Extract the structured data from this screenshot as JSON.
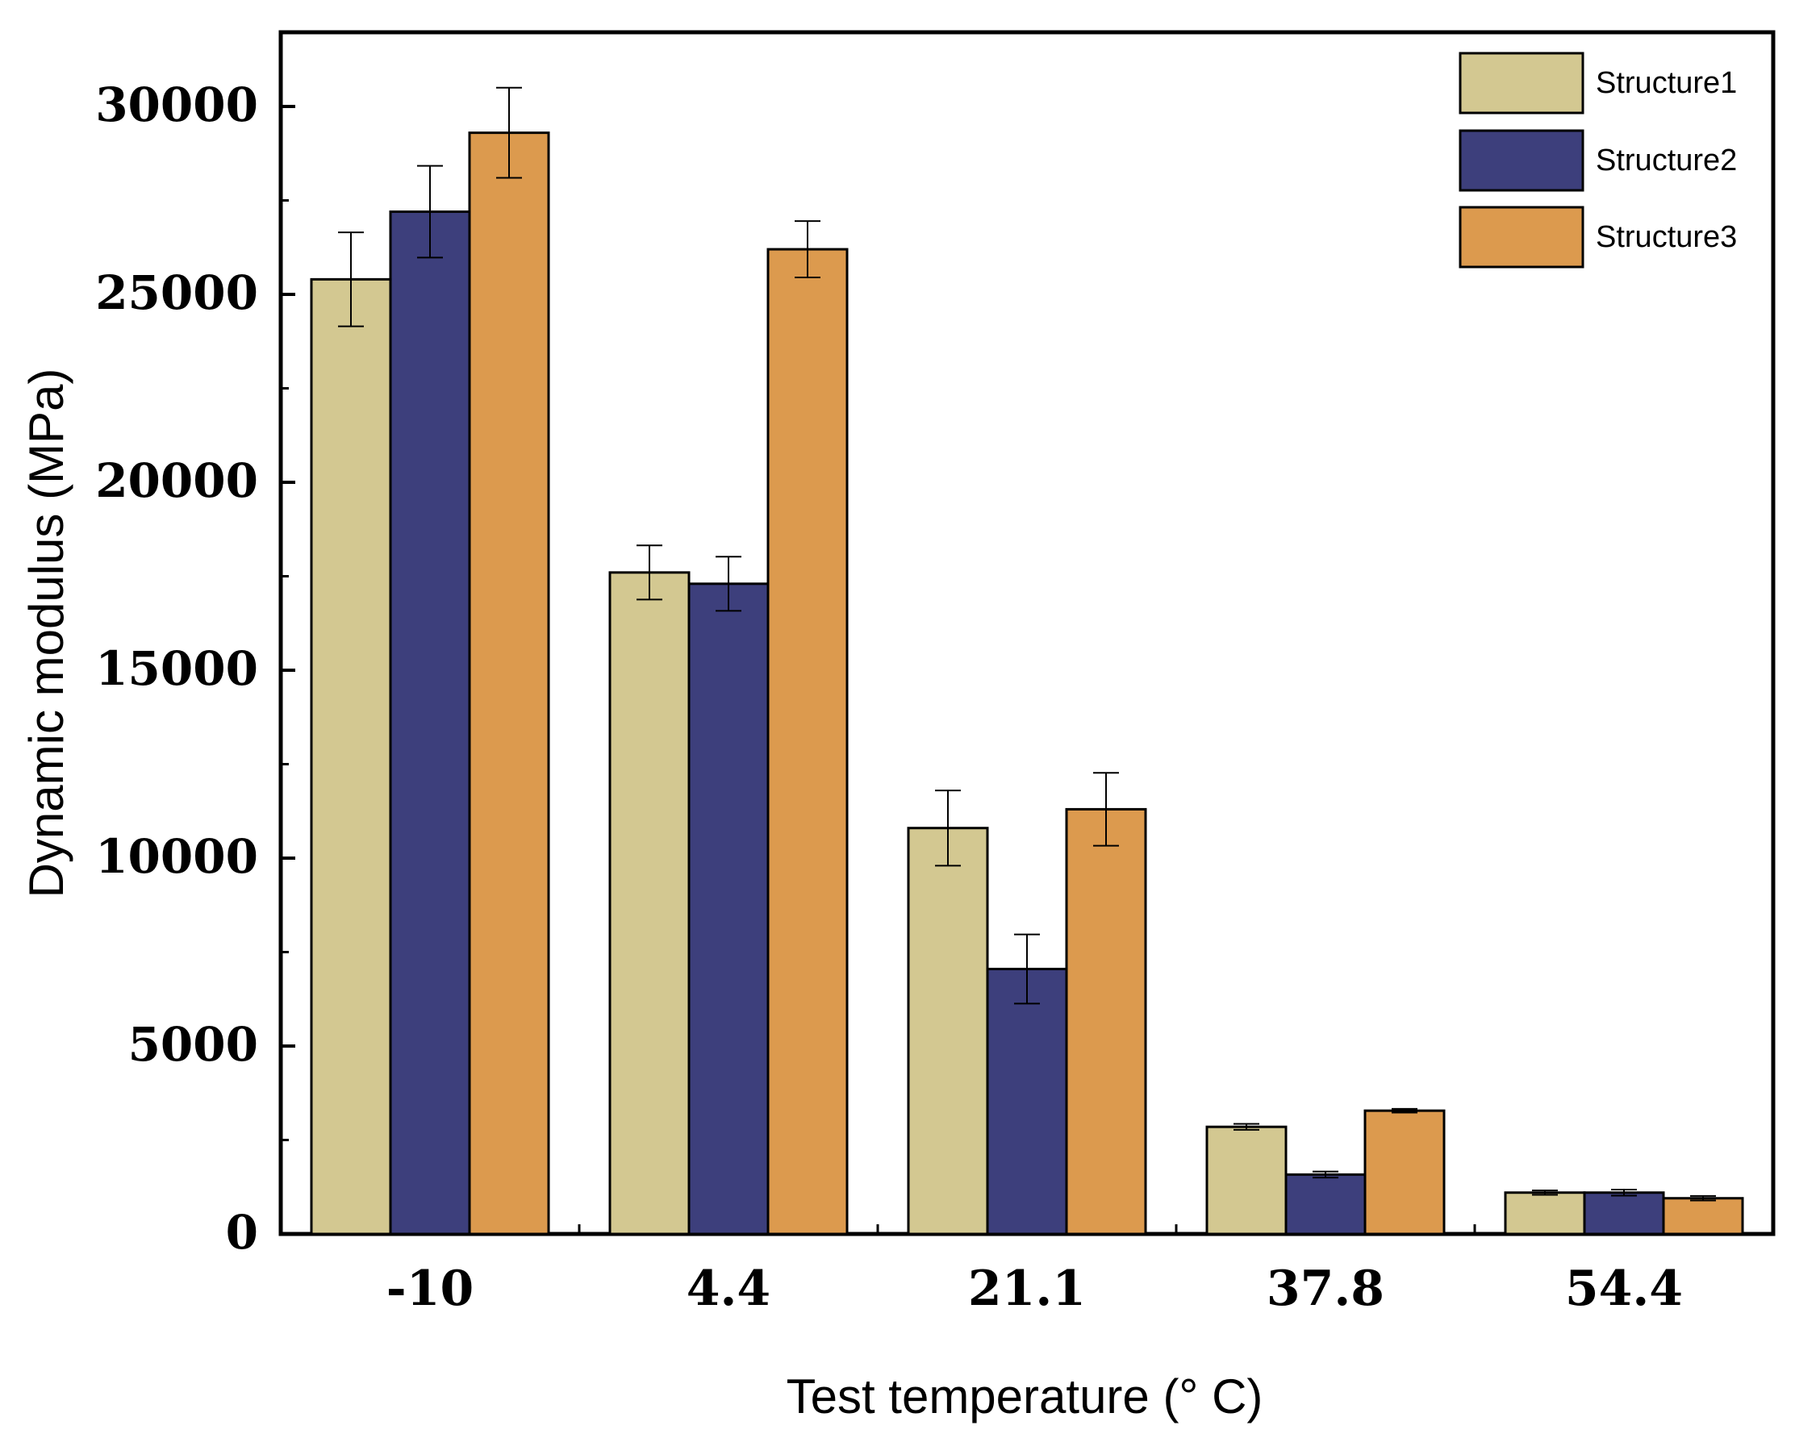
{
  "chart_data": {
    "type": "bar",
    "title": "",
    "xlabel": "Test temperature (° C)",
    "ylabel": "Dynamic modulus (MPa)",
    "categories": [
      "-10",
      "4.4",
      "21.1",
      "37.8",
      "54.4"
    ],
    "ylim": [
      0,
      32000
    ],
    "yticks": [
      0,
      5000,
      10000,
      15000,
      20000,
      25000,
      30000
    ],
    "ytick_labels": [
      "0",
      "5000",
      "10000",
      "15000",
      "20000",
      "25000",
      "30000"
    ],
    "series": [
      {
        "name": "Structure1",
        "color": "#d3c891",
        "values": [
          25400,
          17600,
          10800,
          2850,
          1100
        ],
        "errors": [
          1250,
          720,
          1000,
          80,
          60
        ]
      },
      {
        "name": "Structure2",
        "color": "#3d3f7c",
        "values": [
          27200,
          17300,
          7050,
          1580,
          1100
        ],
        "errors": [
          1220,
          720,
          920,
          80,
          80
        ]
      },
      {
        "name": "Structure3",
        "color": "#dc9a4e",
        "values": [
          29300,
          26200,
          11300,
          3280,
          950
        ],
        "errors": [
          1200,
          750,
          970,
          50,
          60
        ]
      }
    ],
    "legend": {
      "position": "top-right"
    },
    "grid": false,
    "error_bars": true
  }
}
